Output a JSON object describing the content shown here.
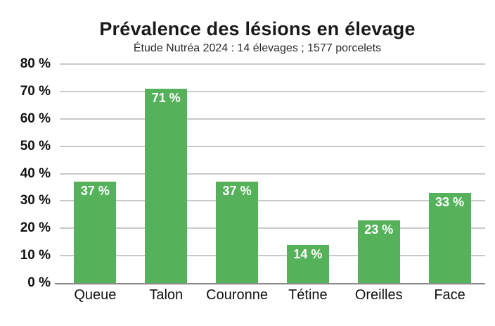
{
  "chart_data": {
    "type": "bar",
    "title": "Prévalence des lésions en élevage",
    "subtitle": "Étude Nutréa 2024 : 14 élevages ; 1577 porcelets",
    "categories": [
      "Queue",
      "Talon",
      "Couronne",
      "Tétine",
      "Oreilles",
      "Face"
    ],
    "values": [
      37,
      71,
      37,
      14,
      23,
      33
    ],
    "value_labels": [
      "37 %",
      "71 %",
      "37 %",
      "14 %",
      "23 %",
      "33 %"
    ],
    "y_ticks": [
      "80 %",
      "70 %",
      "60 %",
      "50 %",
      "40 %",
      "30 %",
      "20 %",
      "10 %",
      "0 %"
    ],
    "y_tick_values": [
      80,
      70,
      60,
      50,
      40,
      30,
      20,
      10,
      0
    ],
    "ylim": [
      0,
      80
    ],
    "xlabel": "",
    "ylabel": "",
    "grid": true,
    "legend": false,
    "colors": {
      "bar": "#55b25a",
      "bar_label_text": "#ffffff",
      "gridline": "#c9c9c9",
      "baseline": "#8a8a8a",
      "title_text": "#1a1a1a",
      "axis_text": "#111111",
      "background": "#ffffff"
    }
  }
}
